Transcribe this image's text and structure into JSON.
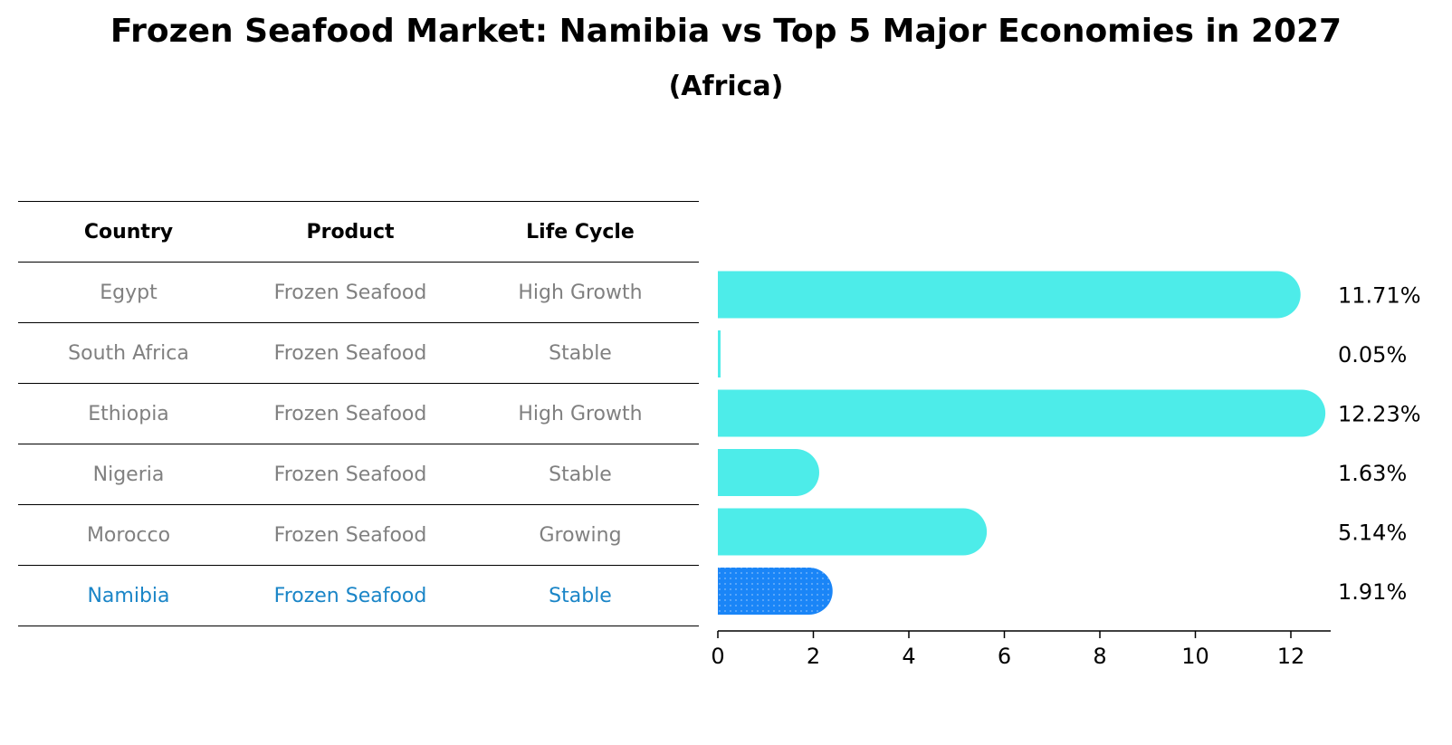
{
  "title": "Frozen Seafood Market: Namibia vs Top 5 Major Economies in 2027",
  "subtitle": "(Africa)",
  "table": {
    "headers": [
      "Country",
      "Product",
      "Life Cycle"
    ],
    "rows": [
      [
        "Egypt",
        "Frozen Seafood",
        "High Growth"
      ],
      [
        "South Africa",
        "Frozen Seafood",
        "Stable"
      ],
      [
        "Ethiopia",
        "Frozen Seafood",
        "High Growth"
      ],
      [
        "Nigeria",
        "Frozen Seafood",
        "Stable"
      ],
      [
        "Morocco",
        "Frozen Seafood",
        "Growing"
      ],
      [
        "Namibia",
        "Frozen Seafood",
        "Stable"
      ]
    ],
    "highlight_row_index": 5
  },
  "colors": {
    "bar": "#4dece9",
    "highlight_bar": "#1a85f7",
    "highlight_text": "#1a85c7",
    "row_text": "#808080"
  },
  "chart_data": {
    "type": "bar",
    "orientation": "horizontal",
    "categories": [
      "Egypt",
      "South Africa",
      "Ethiopia",
      "Nigeria",
      "Morocco",
      "Namibia"
    ],
    "values": [
      11.71,
      0.05,
      12.23,
      1.63,
      5.14,
      1.91
    ],
    "value_labels": [
      "11.71%",
      "0.05%",
      "12.23%",
      "1.63%",
      "5.14%",
      "1.91%"
    ],
    "highlight": "Namibia",
    "xlim": [
      0,
      12.84
    ],
    "xticks": [
      0,
      2,
      4,
      6,
      8,
      10,
      12
    ],
    "xticklabels": [
      "0",
      "2",
      "4",
      "6",
      "8",
      "10",
      "12"
    ]
  }
}
